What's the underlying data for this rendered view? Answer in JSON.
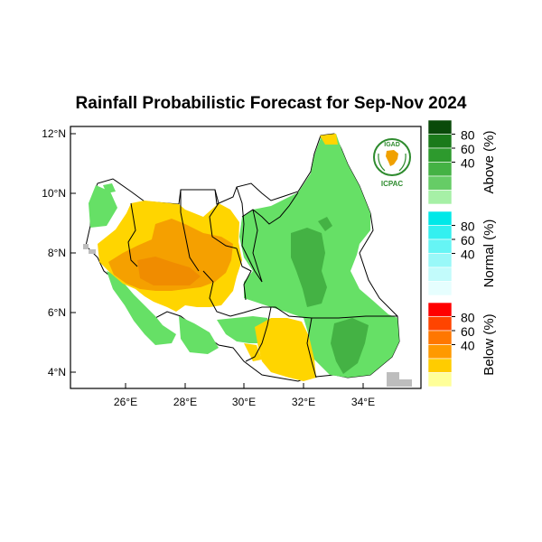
{
  "title": "Rainfall Probabilistic Forecast for Sep-Nov 2024",
  "map": {
    "lat_ticks": [
      "12°N",
      "10°N",
      "8°N",
      "6°N",
      "4°N"
    ],
    "lon_ticks": [
      "26°E",
      "28°E",
      "30°E",
      "32°E",
      "34°E"
    ]
  },
  "logo": {
    "top_text": "IGAD",
    "bottom_text": "ICPAC"
  },
  "legend": {
    "groups": [
      {
        "label": "Above (%)",
        "ticks": [
          "80",
          "60",
          "40"
        ],
        "colors": [
          "#0a4a0a",
          "#1a7a1a",
          "#2d9a2d",
          "#44b244",
          "#66cc66",
          "#a6f0a6"
        ]
      },
      {
        "label": "Normal (%)",
        "ticks": [
          "80",
          "60",
          "40"
        ],
        "colors": [
          "#00e8e8",
          "#33f0f0",
          "#66f5f5",
          "#99f8f8",
          "#c2fbfb",
          "#e6fefe"
        ]
      },
      {
        "label": "Below (%)",
        "ticks": [
          "80",
          "60",
          "40"
        ],
        "colors": [
          "#ff0000",
          "#ff4400",
          "#ff7700",
          "#ff9900",
          "#ffcc00",
          "#ffff99"
        ]
      }
    ]
  },
  "colors": {
    "above_light": "#66e066",
    "above_mid": "#44b244",
    "below_light": "#ffd500",
    "below_mid": "#f5a000",
    "below_dark": "#f08c00",
    "no_data": "#bdbdbd",
    "logo_green": "#2e8b2e"
  }
}
